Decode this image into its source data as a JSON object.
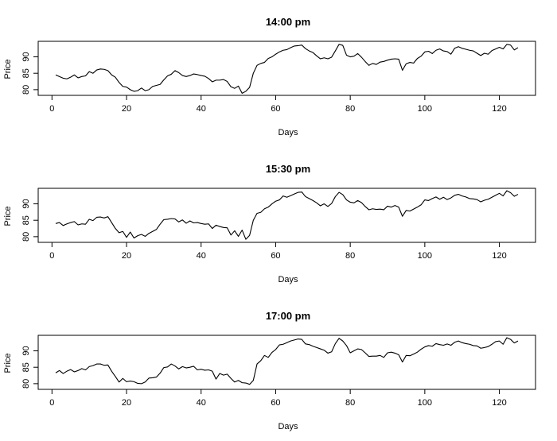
{
  "chart_data": [
    {
      "type": "line",
      "title": "14:00 pm",
      "xlabel": "Days",
      "ylabel": "Price",
      "xlim": [
        1,
        125
      ],
      "ylim": [
        79,
        94
      ],
      "xticks": [
        0,
        20,
        40,
        60,
        80,
        100,
        120
      ],
      "yticks": [
        80,
        85,
        90
      ],
      "series": [
        {
          "x": [
            1,
            2,
            3,
            4,
            5,
            6,
            7,
            8,
            9,
            10,
            11,
            12,
            13,
            14,
            15,
            16,
            17,
            18,
            19,
            20,
            21,
            22,
            23,
            24,
            25,
            26,
            27,
            28,
            29,
            30,
            31,
            32,
            33,
            34,
            35,
            36,
            37,
            38,
            39,
            40,
            41,
            42,
            43,
            44,
            45,
            46,
            47,
            48,
            49,
            50,
            51,
            52,
            53,
            54,
            55,
            56,
            57,
            58,
            59,
            60,
            61,
            62,
            63,
            64,
            65,
            66,
            67,
            68,
            69,
            70,
            71,
            72,
            73,
            74,
            75,
            76,
            77,
            78,
            79,
            80,
            81,
            82,
            83,
            84,
            85,
            86,
            87,
            88,
            89,
            90,
            91,
            92,
            93,
            94,
            95,
            96,
            97,
            98,
            99,
            100,
            101,
            102,
            103,
            104,
            105,
            106,
            107,
            108,
            109,
            110,
            111,
            112,
            113,
            114,
            115,
            116,
            117,
            118,
            119,
            120,
            121,
            122,
            123,
            124,
            125
          ],
          "values": [
            84.5,
            84.0,
            83.5,
            83.3,
            83.8,
            84.5,
            83.6,
            84.0,
            84.2,
            85.5,
            85.0,
            86.0,
            86.3,
            86.2,
            85.8,
            84.5,
            83.8,
            82.2,
            81.0,
            80.8,
            80.0,
            79.5,
            79.7,
            80.5,
            79.7,
            80.0,
            81.0,
            81.3,
            81.6,
            83.0,
            84.2,
            84.7,
            85.8,
            85.2,
            84.3,
            84.0,
            84.3,
            84.8,
            84.6,
            84.3,
            84.1,
            83.4,
            82.4,
            82.9,
            82.9,
            83.1,
            82.5,
            80.9,
            80.4,
            81.1,
            78.9,
            79.5,
            80.7,
            85.0,
            87.4,
            88.0,
            88.3,
            89.5,
            90.0,
            90.8,
            91.5,
            92.0,
            92.2,
            92.8,
            93.3,
            93.4,
            93.6,
            92.5,
            91.8,
            91.3,
            90.3,
            89.4,
            89.7,
            89.4,
            89.9,
            91.8,
            93.8,
            93.5,
            90.5,
            90.0,
            90.2,
            91.0,
            89.9,
            88.6,
            87.4,
            88.0,
            87.7,
            88.4,
            88.6,
            89.0,
            89.3,
            89.4,
            89.3,
            85.9,
            87.9,
            88.3,
            88.1,
            89.5,
            90.2,
            91.5,
            91.7,
            91.0,
            92.0,
            92.4,
            91.8,
            91.6,
            90.8,
            92.6,
            93.1,
            92.6,
            92.3,
            92.0,
            91.8,
            91.1,
            90.4,
            91.1,
            90.8,
            91.9,
            92.4,
            92.9,
            92.4,
            93.8,
            93.6,
            92.1,
            92.8
          ]
        }
      ]
    },
    {
      "type": "line",
      "title": "15:30 pm",
      "xlabel": "Days",
      "ylabel": "Price",
      "xlim": [
        1,
        125
      ],
      "ylim": [
        79,
        94
      ],
      "xticks": [
        0,
        20,
        40,
        60,
        80,
        100,
        120
      ],
      "yticks": [
        80,
        85,
        90
      ],
      "series": [
        {
          "x": [
            1,
            2,
            3,
            4,
            5,
            6,
            7,
            8,
            9,
            10,
            11,
            12,
            13,
            14,
            15,
            16,
            17,
            18,
            19,
            20,
            21,
            22,
            23,
            24,
            25,
            26,
            27,
            28,
            29,
            30,
            31,
            32,
            33,
            34,
            35,
            36,
            37,
            38,
            39,
            40,
            41,
            42,
            43,
            44,
            45,
            46,
            47,
            48,
            49,
            50,
            51,
            52,
            53,
            54,
            55,
            56,
            57,
            58,
            59,
            60,
            61,
            62,
            63,
            64,
            65,
            66,
            67,
            68,
            69,
            70,
            71,
            72,
            73,
            74,
            75,
            76,
            77,
            78,
            79,
            80,
            81,
            82,
            83,
            84,
            85,
            86,
            87,
            88,
            89,
            90,
            91,
            92,
            93,
            94,
            95,
            96,
            97,
            98,
            99,
            100,
            101,
            102,
            103,
            104,
            105,
            106,
            107,
            108,
            109,
            110,
            111,
            112,
            113,
            114,
            115,
            116,
            117,
            118,
            119,
            120,
            121,
            122,
            123,
            124,
            125
          ],
          "values": [
            84.0,
            84.3,
            83.4,
            83.9,
            84.3,
            84.6,
            83.6,
            83.9,
            83.8,
            85.3,
            84.9,
            85.9,
            86.0,
            85.7,
            86.1,
            84.3,
            82.5,
            81.2,
            81.6,
            79.8,
            81.4,
            79.6,
            80.3,
            80.7,
            80.1,
            81.0,
            81.6,
            82.2,
            83.8,
            85.2,
            85.3,
            85.5,
            85.4,
            84.5,
            85.1,
            84.1,
            84.8,
            84.2,
            84.3,
            84.0,
            83.8,
            83.9,
            82.5,
            83.5,
            83.1,
            82.8,
            82.7,
            80.5,
            81.8,
            80.1,
            82.0,
            79.2,
            80.4,
            85.0,
            87.1,
            87.4,
            88.5,
            89.0,
            90.0,
            90.8,
            91.2,
            92.4,
            92.0,
            92.5,
            93.0,
            93.5,
            93.6,
            92.2,
            91.6,
            91.0,
            90.3,
            89.4,
            90.0,
            89.2,
            90.1,
            92.2,
            93.5,
            92.8,
            91.2,
            90.5,
            90.3,
            91.0,
            90.4,
            89.2,
            88.2,
            88.5,
            88.3,
            88.4,
            88.2,
            89.3,
            89.0,
            89.5,
            89.0,
            86.2,
            88.0,
            87.8,
            88.4,
            89.0,
            89.7,
            91.2,
            91.0,
            91.6,
            92.1,
            91.4,
            92.0,
            91.3,
            91.8,
            92.6,
            92.9,
            92.4,
            92.1,
            91.6,
            91.5,
            91.3,
            90.6,
            91.1,
            91.4,
            92.0,
            92.6,
            93.2,
            92.4,
            94.0,
            93.4,
            92.3,
            92.9
          ]
        }
      ]
    },
    {
      "type": "line",
      "title": "17:00 pm",
      "xlabel": "Days",
      "ylabel": "Price",
      "xlim": [
        1,
        125
      ],
      "ylim": [
        79,
        94
      ],
      "xticks": [
        0,
        20,
        40,
        60,
        80,
        100,
        120
      ],
      "yticks": [
        80,
        85,
        90
      ],
      "series": [
        {
          "x": [
            1,
            2,
            3,
            4,
            5,
            6,
            7,
            8,
            9,
            10,
            11,
            12,
            13,
            14,
            15,
            16,
            17,
            18,
            19,
            20,
            21,
            22,
            23,
            24,
            25,
            26,
            27,
            28,
            29,
            30,
            31,
            32,
            33,
            34,
            35,
            36,
            37,
            38,
            39,
            40,
            41,
            42,
            43,
            44,
            45,
            46,
            47,
            48,
            49,
            50,
            51,
            52,
            53,
            54,
            55,
            56,
            57,
            58,
            59,
            60,
            61,
            62,
            63,
            64,
            65,
            66,
            67,
            68,
            69,
            70,
            71,
            72,
            73,
            74,
            75,
            76,
            77,
            78,
            79,
            80,
            81,
            82,
            83,
            84,
            85,
            86,
            87,
            88,
            89,
            90,
            91,
            92,
            93,
            94,
            95,
            96,
            97,
            98,
            99,
            100,
            101,
            102,
            103,
            104,
            105,
            106,
            107,
            108,
            109,
            110,
            111,
            112,
            113,
            114,
            115,
            116,
            117,
            118,
            119,
            120,
            121,
            122,
            123,
            124,
            125
          ],
          "values": [
            83.3,
            84.0,
            83.1,
            83.8,
            84.3,
            83.6,
            84.0,
            84.6,
            84.2,
            85.2,
            85.5,
            86.0,
            86.0,
            85.6,
            85.7,
            83.8,
            82.2,
            80.5,
            81.6,
            80.6,
            80.8,
            80.6,
            80.1,
            80.0,
            80.5,
            81.7,
            81.8,
            82.0,
            83.2,
            84.9,
            85.1,
            86.0,
            85.4,
            84.5,
            85.2,
            84.8,
            85.0,
            85.3,
            84.2,
            84.4,
            84.1,
            84.2,
            83.8,
            81.4,
            83.1,
            82.6,
            82.9,
            81.6,
            80.5,
            81.0,
            80.3,
            80.2,
            79.8,
            81.0,
            86.0,
            87.0,
            88.6,
            88.0,
            89.5,
            90.4,
            91.8,
            92.0,
            92.5,
            93.0,
            93.3,
            93.6,
            93.5,
            92.1,
            91.9,
            91.4,
            91.0,
            90.6,
            90.2,
            89.3,
            89.7,
            92.2,
            93.8,
            93.0,
            91.6,
            89.4,
            90.0,
            90.6,
            90.4,
            89.4,
            88.3,
            88.4,
            88.4,
            88.6,
            88.0,
            89.4,
            89.6,
            89.3,
            88.8,
            86.6,
            88.6,
            88.5,
            89.0,
            89.6,
            90.5,
            91.2,
            91.6,
            91.4,
            92.2,
            91.9,
            91.7,
            92.1,
            91.7,
            92.6,
            93.0,
            92.5,
            92.2,
            92.0,
            91.6,
            91.5,
            90.8,
            91.0,
            91.3,
            92.0,
            92.8,
            93.0,
            92.0,
            94.0,
            93.5,
            92.4,
            93.0
          ]
        }
      ]
    }
  ]
}
